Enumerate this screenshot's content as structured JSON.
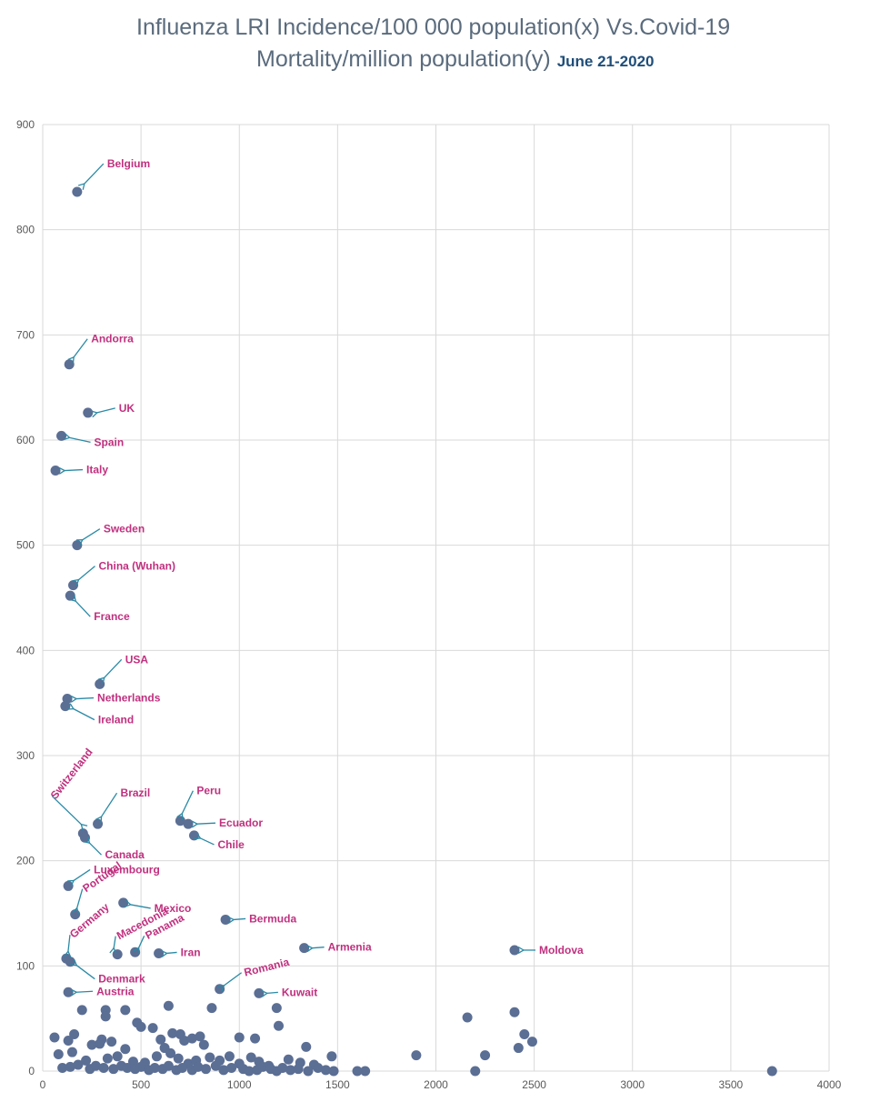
{
  "chart_data": {
    "type": "scatter",
    "title": "Influenza LRI Incidence/100 000 population(x) Vs.Covid-19",
    "title_line2": "Mortality/million population(y)",
    "title_date": "June 21-2020",
    "xlim": [
      0,
      4000
    ],
    "ylim": [
      0,
      900
    ],
    "x_ticks": [
      0,
      500,
      1000,
      1500,
      2000,
      2500,
      3000,
      3500,
      4000
    ],
    "y_ticks": [
      0,
      100,
      200,
      300,
      400,
      500,
      600,
      700,
      800,
      900
    ],
    "grid": true,
    "marker_color": "#5b6e94",
    "label_color": "#c0307f",
    "arrow_color": "#2a8aa6",
    "labeled_points": [
      {
        "name": "Belgium",
        "x": 175,
        "y": 836
      },
      {
        "name": "Andorra",
        "x": 135,
        "y": 672
      },
      {
        "name": "UK",
        "x": 230,
        "y": 626
      },
      {
        "name": "Spain",
        "x": 95,
        "y": 604
      },
      {
        "name": "Italy",
        "x": 65,
        "y": 571
      },
      {
        "name": "Sweden",
        "x": 175,
        "y": 500
      },
      {
        "name": "China (Wuhan)",
        "x": 155,
        "y": 462
      },
      {
        "name": "France",
        "x": 140,
        "y": 452
      },
      {
        "name": "USA",
        "x": 290,
        "y": 368
      },
      {
        "name": "Netherlands",
        "x": 125,
        "y": 354
      },
      {
        "name": "Ireland",
        "x": 115,
        "y": 347
      },
      {
        "name": "Switzerland",
        "x": 205,
        "y": 226
      },
      {
        "name": "Brazil",
        "x": 280,
        "y": 235
      },
      {
        "name": "Canada",
        "x": 215,
        "y": 222
      },
      {
        "name": "Peru",
        "x": 700,
        "y": 238
      },
      {
        "name": "Ecuador",
        "x": 740,
        "y": 235
      },
      {
        "name": "Chile",
        "x": 770,
        "y": 224
      },
      {
        "name": "Luxembourg",
        "x": 130,
        "y": 176
      },
      {
        "name": "Portugal",
        "x": 165,
        "y": 149
      },
      {
        "name": "Mexico",
        "x": 410,
        "y": 160
      },
      {
        "name": "Bermuda",
        "x": 930,
        "y": 144
      },
      {
        "name": "Germany",
        "x": 120,
        "y": 107
      },
      {
        "name": "Denmark",
        "x": 140,
        "y": 104
      },
      {
        "name": "Macedonia",
        "x": 380,
        "y": 111
      },
      {
        "name": "Panama",
        "x": 470,
        "y": 113
      },
      {
        "name": "Iran",
        "x": 590,
        "y": 112
      },
      {
        "name": "Armenia",
        "x": 1330,
        "y": 117
      },
      {
        "name": "Moldova",
        "x": 2400,
        "y": 115
      },
      {
        "name": "Romania",
        "x": 900,
        "y": 78
      },
      {
        "name": "Kuwait",
        "x": 1100,
        "y": 74
      },
      {
        "name": "Austria",
        "x": 130,
        "y": 75
      }
    ],
    "other_points": [
      [
        200,
        58
      ],
      [
        320,
        58
      ],
      [
        420,
        58
      ],
      [
        640,
        62
      ],
      [
        860,
        60
      ],
      [
        1190,
        60
      ],
      [
        2160,
        51
      ],
      [
        2400,
        56
      ],
      [
        60,
        32
      ],
      [
        130,
        29
      ],
      [
        160,
        35
      ],
      [
        300,
        30
      ],
      [
        320,
        52
      ],
      [
        350,
        28
      ],
      [
        480,
        46
      ],
      [
        500,
        42
      ],
      [
        560,
        41
      ],
      [
        600,
        30
      ],
      [
        660,
        36
      ],
      [
        700,
        35
      ],
      [
        720,
        29
      ],
      [
        760,
        31
      ],
      [
        800,
        33
      ],
      [
        820,
        25
      ],
      [
        1000,
        32
      ],
      [
        1080,
        31
      ],
      [
        1200,
        43
      ],
      [
        1340,
        23
      ],
      [
        2450,
        35
      ],
      [
        2490,
        28
      ],
      [
        2420,
        22
      ],
      [
        80,
        16
      ],
      [
        150,
        18
      ],
      [
        220,
        10
      ],
      [
        250,
        25
      ],
      [
        290,
        26
      ],
      [
        330,
        12
      ],
      [
        380,
        14
      ],
      [
        420,
        21
      ],
      [
        460,
        9
      ],
      [
        520,
        8
      ],
      [
        580,
        14
      ],
      [
        620,
        22
      ],
      [
        650,
        17
      ],
      [
        690,
        12
      ],
      [
        740,
        7
      ],
      [
        780,
        10
      ],
      [
        850,
        13
      ],
      [
        900,
        10
      ],
      [
        950,
        14
      ],
      [
        1000,
        7
      ],
      [
        1060,
        13
      ],
      [
        1100,
        9
      ],
      [
        1150,
        5
      ],
      [
        1250,
        11
      ],
      [
        1310,
        8
      ],
      [
        1380,
        6
      ],
      [
        1470,
        14
      ],
      [
        1900,
        15
      ],
      [
        2250,
        15
      ],
      [
        100,
        3
      ],
      [
        140,
        4
      ],
      [
        180,
        6
      ],
      [
        240,
        2
      ],
      [
        270,
        5
      ],
      [
        310,
        3
      ],
      [
        360,
        2
      ],
      [
        400,
        5
      ],
      [
        430,
        3
      ],
      [
        470,
        2
      ],
      [
        500,
        4
      ],
      [
        540,
        1
      ],
      [
        570,
        3
      ],
      [
        610,
        2
      ],
      [
        640,
        5
      ],
      [
        680,
        1
      ],
      [
        710,
        3
      ],
      [
        760,
        1
      ],
      [
        790,
        4
      ],
      [
        830,
        2
      ],
      [
        880,
        5
      ],
      [
        920,
        1
      ],
      [
        960,
        3
      ],
      [
        1020,
        2
      ],
      [
        1050,
        0
      ],
      [
        1090,
        1
      ],
      [
        1120,
        4
      ],
      [
        1160,
        2
      ],
      [
        1190,
        0
      ],
      [
        1220,
        3
      ],
      [
        1260,
        1
      ],
      [
        1300,
        2
      ],
      [
        1350,
        0
      ],
      [
        1400,
        3
      ],
      [
        1440,
        1
      ],
      [
        1480,
        0
      ],
      [
        1600,
        0
      ],
      [
        1640,
        0
      ],
      [
        2200,
        0
      ],
      [
        3710,
        0
      ]
    ]
  }
}
